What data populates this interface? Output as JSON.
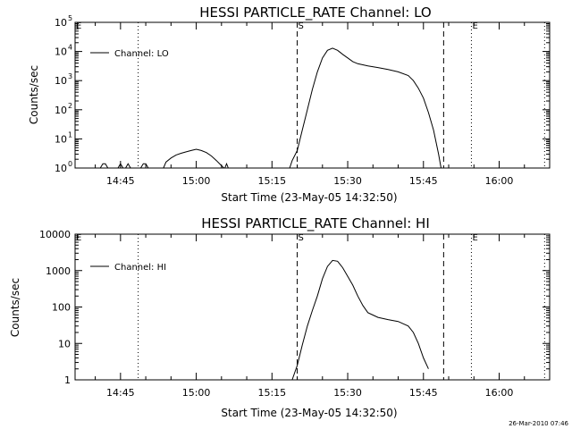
{
  "footer": {
    "timestamp": "26-Mar-2010 07:46"
  },
  "chart_data": [
    {
      "type": "line",
      "title": "HESSI PARTICLE_RATE Channel: LO",
      "xlabel": "Start Time (23-May-05 14:32:50)",
      "ylabel": "Counts/sec",
      "yscale": "log",
      "xlim": [
        "14:36:00",
        "16:10:00"
      ],
      "ylim": [
        1,
        100000
      ],
      "x_ticks": [
        "14:45",
        "15:00",
        "15:15",
        "15:30",
        "15:45",
        "16:00"
      ],
      "y_ticks": [
        {
          "value": 1,
          "label": "10",
          "exp": "0"
        },
        {
          "value": 10,
          "label": "10",
          "exp": "1"
        },
        {
          "value": 100,
          "label": "10",
          "exp": "2"
        },
        {
          "value": 1000,
          "label": "10",
          "exp": "3"
        },
        {
          "value": 10000,
          "label": "10",
          "exp": "4"
        },
        {
          "value": 100000,
          "label": "10",
          "exp": "5"
        }
      ],
      "legend": {
        "label": "Channel: LO",
        "position": "top-left"
      },
      "markers": [
        {
          "time": "14:36:00",
          "label": "E",
          "style": "dotted"
        },
        {
          "time": "14:48:30",
          "label": "",
          "style": "dotted"
        },
        {
          "time": "15:20:00",
          "label": "S",
          "style": "dashed"
        },
        {
          "time": "15:49:00",
          "label": "",
          "style": "dashed"
        },
        {
          "time": "15:54:30",
          "label": "E",
          "style": "dotted"
        },
        {
          "time": "16:09:00",
          "label": "",
          "style": "dotted"
        }
      ],
      "series": [
        {
          "segments": [
            [
              [
                "14:41:00",
                1
              ],
              [
                "14:41:30",
                1.4
              ],
              [
                "14:42:00",
                1.4
              ],
              [
                "14:42:30",
                1
              ]
            ],
            [
              [
                "14:44:30",
                1
              ],
              [
                "14:45:00",
                1.4
              ],
              [
                "14:45:30",
                1
              ]
            ],
            [
              [
                "14:46:00",
                1
              ],
              [
                "14:46:30",
                1.4
              ],
              [
                "14:47:00",
                1
              ]
            ],
            [
              [
                "14:49:00",
                1
              ],
              [
                "14:49:30",
                1.4
              ],
              [
                "14:50:00",
                1.4
              ],
              [
                "14:50:30",
                1
              ]
            ],
            [
              [
                "14:53:30",
                1
              ],
              [
                "14:54:00",
                1.6
              ],
              [
                "14:55:00",
                2.2
              ],
              [
                "14:56:00",
                2.8
              ],
              [
                "14:57:00",
                3.2
              ],
              [
                "14:58:00",
                3.6
              ],
              [
                "14:59:00",
                4.0
              ],
              [
                "15:00:00",
                4.4
              ],
              [
                "15:01:00",
                4.0
              ],
              [
                "15:02:00",
                3.4
              ],
              [
                "15:03:00",
                2.6
              ],
              [
                "15:04:00",
                1.8
              ],
              [
                "15:05:00",
                1.2
              ],
              [
                "15:05:30",
                1
              ]
            ],
            [
              [
                "15:05:40",
                1
              ],
              [
                "15:06:00",
                1.4
              ],
              [
                "15:06:20",
                1
              ]
            ],
            [
              [
                "15:18:30",
                1
              ],
              [
                "15:19:00",
                1.8
              ],
              [
                "15:20:00",
                4
              ],
              [
                "15:21:00",
                20
              ],
              [
                "15:22:00",
                100
              ],
              [
                "15:23:00",
                500
              ],
              [
                "15:24:00",
                2000
              ],
              [
                "15:25:00",
                6000
              ],
              [
                "15:26:00",
                11000
              ],
              [
                "15:27:00",
                13000
              ],
              [
                "15:28:00",
                11000
              ],
              [
                "15:29:00",
                8000
              ],
              [
                "15:30:00",
                6000
              ],
              [
                "15:31:00",
                4500
              ],
              [
                "15:32:00",
                3800
              ],
              [
                "15:34:00",
                3200
              ],
              [
                "15:36:00",
                2800
              ],
              [
                "15:38:00",
                2400
              ],
              [
                "15:40:00",
                2000
              ],
              [
                "15:42:00",
                1500
              ],
              [
                "15:43:00",
                1000
              ],
              [
                "15:44:00",
                550
              ],
              [
                "15:45:00",
                250
              ],
              [
                "15:46:00",
                80
              ],
              [
                "15:47:00",
                20
              ],
              [
                "15:48:00",
                3
              ],
              [
                "15:48:30",
                1
              ]
            ]
          ]
        }
      ]
    },
    {
      "type": "line",
      "title": "HESSI PARTICLE_RATE Channel: HI",
      "xlabel": "Start Time (23-May-05 14:32:50)",
      "ylabel": "Counts/sec",
      "yscale": "log",
      "xlim": [
        "14:36:00",
        "16:10:00"
      ],
      "ylim": [
        1,
        10000
      ],
      "x_ticks": [
        "14:45",
        "15:00",
        "15:15",
        "15:30",
        "15:45",
        "16:00"
      ],
      "y_ticks": [
        {
          "value": 1,
          "label": "1"
        },
        {
          "value": 10,
          "label": "10"
        },
        {
          "value": 100,
          "label": "100"
        },
        {
          "value": 1000,
          "label": "1000"
        },
        {
          "value": 10000,
          "label": "10000"
        }
      ],
      "legend": {
        "label": "Channel: HI",
        "position": "top-left"
      },
      "markers": [
        {
          "time": "14:36:00",
          "label": "E",
          "style": "dotted"
        },
        {
          "time": "14:48:30",
          "label": "",
          "style": "dotted"
        },
        {
          "time": "15:20:00",
          "label": "S",
          "style": "dashed"
        },
        {
          "time": "15:49:00",
          "label": "",
          "style": "dashed"
        },
        {
          "time": "15:54:30",
          "label": "E",
          "style": "dotted"
        },
        {
          "time": "16:09:00",
          "label": "",
          "style": "dotted"
        }
      ],
      "series": [
        {
          "segments": [
            [
              [
                "15:19:00",
                1
              ],
              [
                "15:20:00",
                2.5
              ],
              [
                "15:21:00",
                9
              ],
              [
                "15:22:00",
                30
              ],
              [
                "15:23:00",
                80
              ],
              [
                "15:24:00",
                200
              ],
              [
                "15:25:00",
                600
              ],
              [
                "15:26:00",
                1300
              ],
              [
                "15:27:00",
                1900
              ],
              [
                "15:28:00",
                1800
              ],
              [
                "15:29:00",
                1200
              ],
              [
                "15:30:00",
                700
              ],
              [
                "15:31:00",
                400
              ],
              [
                "15:32:00",
                200
              ],
              [
                "15:33:00",
                110
              ],
              [
                "15:34:00",
                70
              ],
              [
                "15:35:00",
                60
              ],
              [
                "15:36:00",
                52
              ],
              [
                "15:38:00",
                45
              ],
              [
                "15:40:00",
                40
              ],
              [
                "15:42:00",
                30
              ],
              [
                "15:43:00",
                20
              ],
              [
                "15:44:00",
                10
              ],
              [
                "15:45:00",
                4
              ],
              [
                "15:46:00",
                2
              ]
            ]
          ]
        }
      ]
    }
  ]
}
